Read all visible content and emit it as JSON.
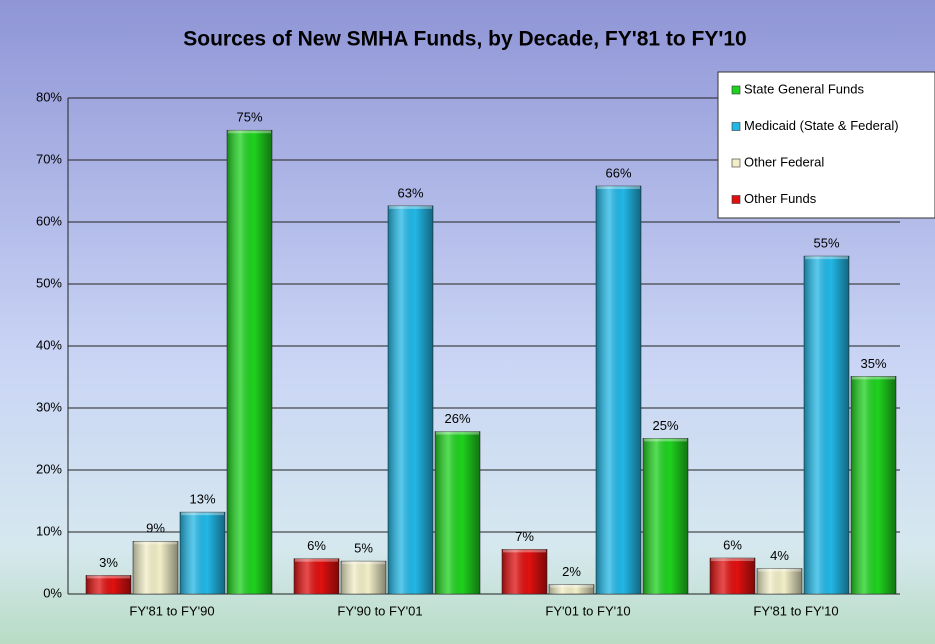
{
  "chart_data": {
    "type": "bar",
    "title": "Sources of New SMHA Funds, by Decade, FY'81 to FY'10",
    "categories": [
      "FY'81 to FY'90",
      "FY'90 to FY'01",
      "FY'01 to FY'10",
      "FY'81 to FY'10"
    ],
    "series": [
      {
        "name": "Other Funds",
        "color": "#e01010",
        "values": [
          3,
          5.7,
          7.2,
          5.8
        ],
        "value_labels": [
          "3%",
          "6%",
          "7%",
          "6%"
        ]
      },
      {
        "name": "Other Federal",
        "color": "#f2efc8",
        "values": [
          8.5,
          5.3,
          1.5,
          4.1
        ],
        "value_labels": [
          "9%",
          "5%",
          "2%",
          "4%"
        ]
      },
      {
        "name": "Medicaid (State & Federal)",
        "color": "#22b8e6",
        "values": [
          13.2,
          62.6,
          65.8,
          54.5
        ],
        "value_labels": [
          "13%",
          "63%",
          "66%",
          "55%"
        ]
      },
      {
        "name": "State General Funds",
        "color": "#1fd21f",
        "values": [
          74.8,
          26.2,
          25.1,
          35.1
        ],
        "value_labels": [
          "75%",
          "26%",
          "25%",
          "35%"
        ]
      }
    ],
    "ylim": [
      0,
      80
    ],
    "yticks": [
      {
        "value": 0,
        "label": "0%"
      },
      {
        "value": 10,
        "label": "10%"
      },
      {
        "value": 20,
        "label": "20%"
      },
      {
        "value": 30,
        "label": "30%"
      },
      {
        "value": 40,
        "label": "40%"
      },
      {
        "value": 50,
        "label": "50%"
      },
      {
        "value": 60,
        "label": "60%"
      },
      {
        "value": 70,
        "label": "70%"
      },
      {
        "value": 80,
        "label": "80%"
      }
    ],
    "grid": true,
    "legend": "top-right"
  }
}
